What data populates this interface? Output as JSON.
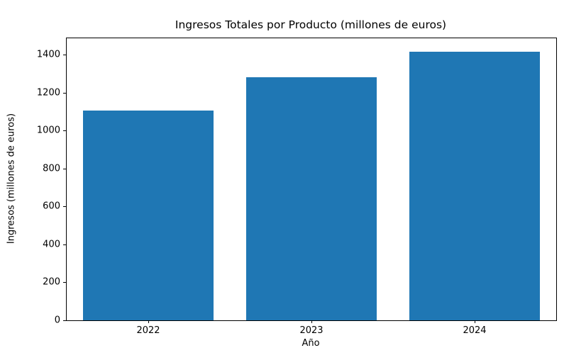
{
  "chart_data": {
    "type": "bar",
    "title": "Ingresos Totales por Producto (millones de euros)",
    "xlabel": "Año",
    "ylabel": "Ingresos (millones de euros)",
    "categories": [
      "2022",
      "2023",
      "2024"
    ],
    "values": [
      1105,
      1280,
      1415
    ],
    "ylim": [
      0,
      1486
    ],
    "yticks": [
      0,
      200,
      400,
      600,
      800,
      1000,
      1200,
      1400
    ],
    "bar_color": "#1f77b4",
    "bar_width_fraction": 0.8,
    "grid": false,
    "legend_position": "none",
    "background_color": "#ffffff",
    "spine_color": "#000000",
    "text_color": "#000000"
  }
}
